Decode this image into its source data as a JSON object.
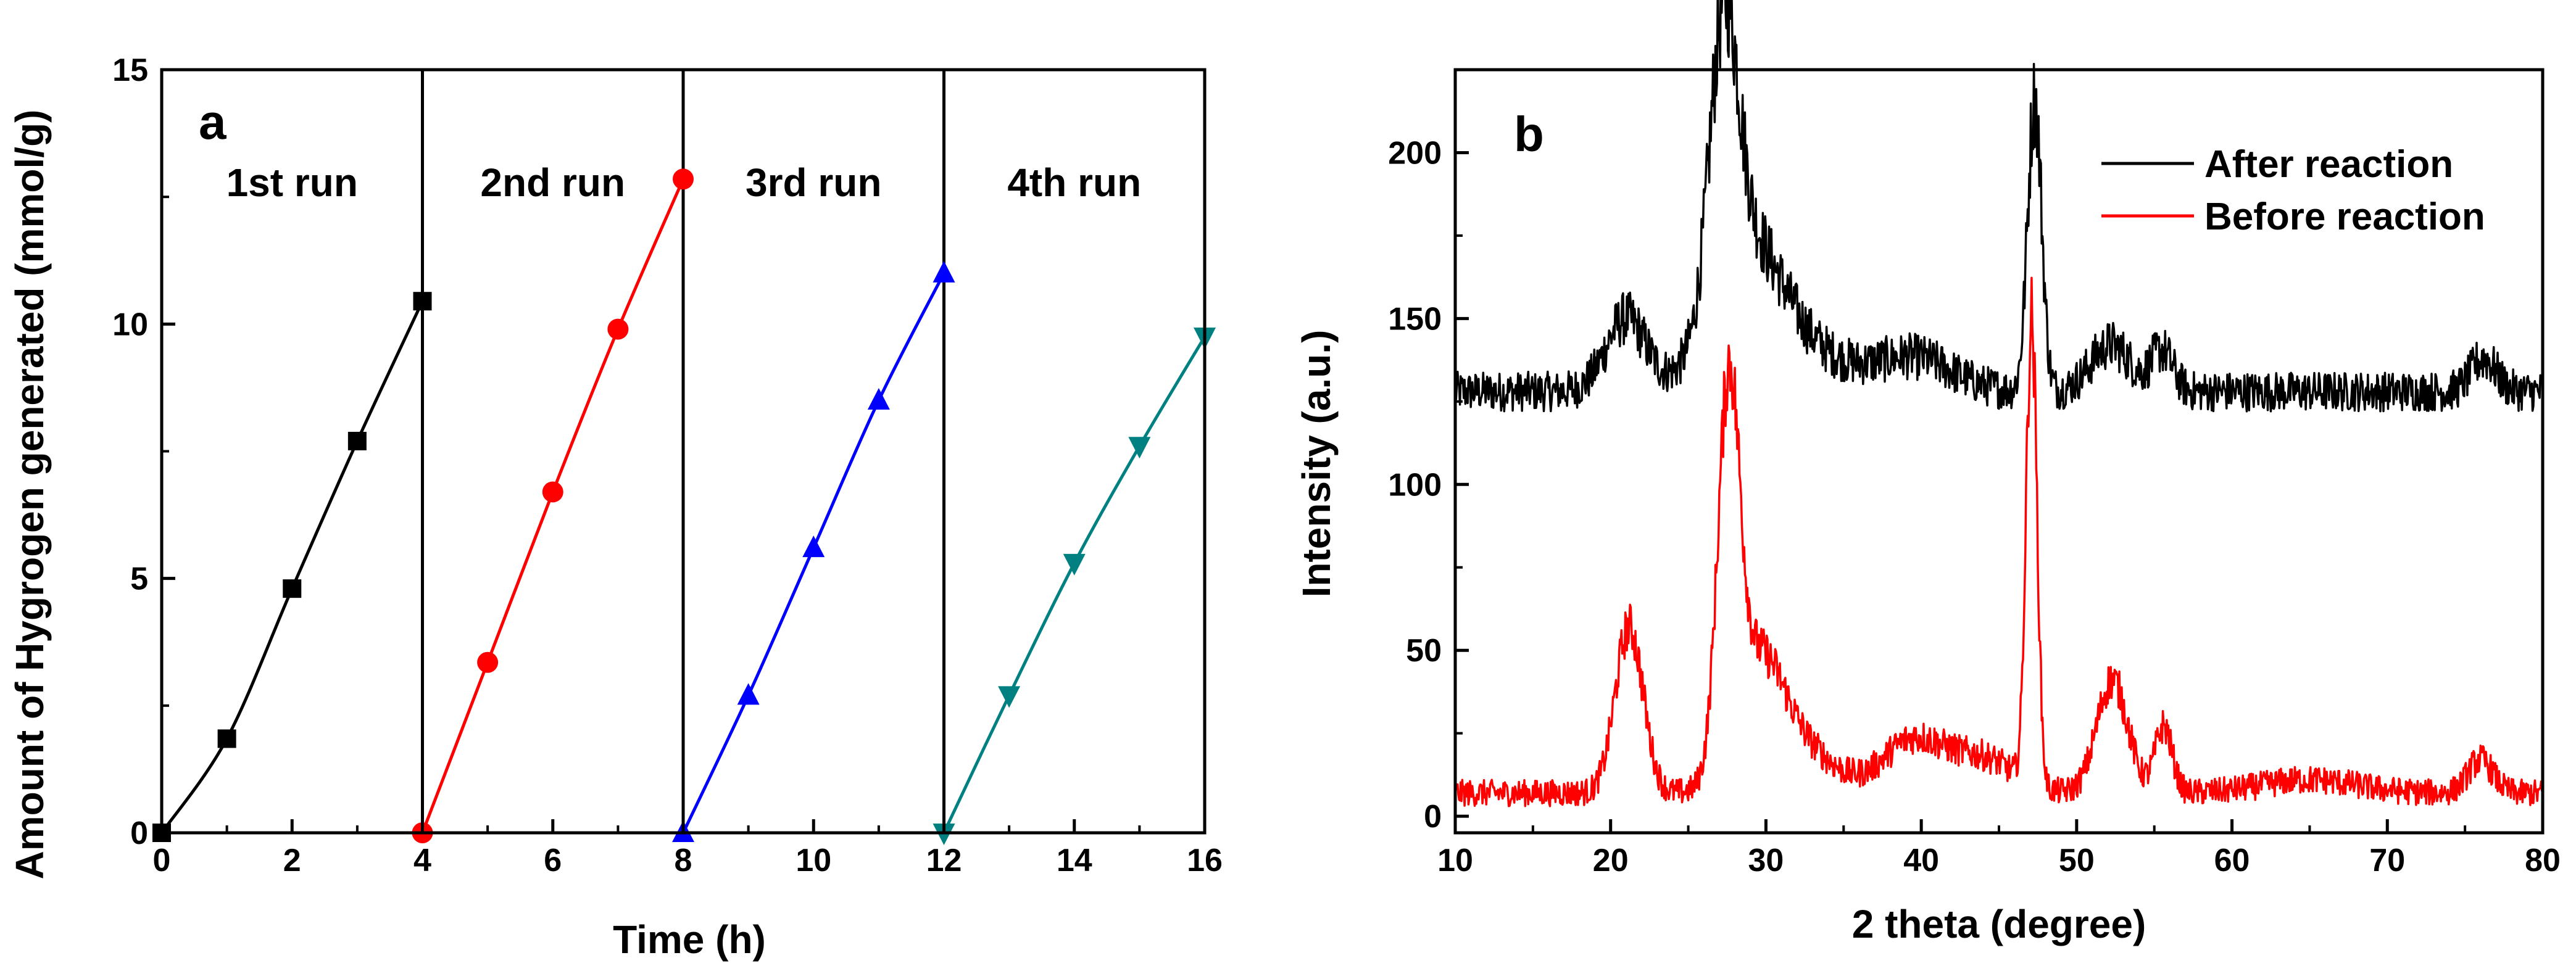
{
  "chart_data": [
    {
      "type": "line",
      "panel_label": "a",
      "xlabel": "Time (h)",
      "ylabel": "Amount of Hygrogen generated (mmol/g)",
      "xlim": [
        0,
        16
      ],
      "ylim": [
        0,
        15
      ],
      "xticks": [
        0,
        2,
        4,
        6,
        8,
        10,
        12,
        14,
        16
      ],
      "yticks": [
        0,
        5,
        10,
        15
      ],
      "run_dividers": [
        4,
        8,
        12
      ],
      "series": [
        {
          "name": "1st run",
          "color": "#000000",
          "marker": "square",
          "x": [
            0,
            1,
            2,
            3,
            4
          ],
          "y": [
            0,
            1.85,
            4.8,
            7.7,
            10.45
          ]
        },
        {
          "name": "2nd run",
          "color": "#ff0000",
          "marker": "circle",
          "x": [
            4,
            5,
            6,
            7,
            8
          ],
          "y": [
            0,
            3.35,
            6.7,
            9.9,
            12.85
          ]
        },
        {
          "name": "3rd run",
          "color": "#0000ff",
          "marker": "triangle-up",
          "x": [
            8,
            9,
            10,
            11,
            12
          ],
          "y": [
            0,
            2.7,
            5.6,
            8.5,
            11.0
          ]
        },
        {
          "name": "4th run",
          "color": "#008080",
          "marker": "triangle-down",
          "x": [
            12,
            13,
            14,
            15,
            16
          ],
          "y": [
            0,
            2.7,
            5.3,
            7.6,
            9.75
          ]
        }
      ]
    },
    {
      "type": "line",
      "panel_label": "b",
      "xlabel": "2 theta (degree)",
      "ylabel": "Intensity (a.u.)",
      "xlim": [
        10,
        80
      ],
      "ylim": [
        -5,
        225
      ],
      "xticks": [
        10,
        20,
        30,
        40,
        50,
        60,
        70,
        80
      ],
      "yticks": [
        0,
        50,
        100,
        150,
        200
      ],
      "legend_position": "top-right",
      "series": [
        {
          "name": "After reaction",
          "color": "#000000",
          "baseline": 128,
          "peaks": [
            {
              "x": 21.0,
              "height": 22,
              "width": 1.3
            },
            {
              "x": 27.3,
              "height": 82,
              "width": 0.9
            },
            {
              "x": 28.6,
              "height": 40,
              "width": 2.2
            },
            {
              "x": 32.0,
              "height": 12,
              "width": 3.0
            },
            {
              "x": 39.5,
              "height": 10,
              "width": 2.5
            },
            {
              "x": 47.3,
              "height": 88,
              "width": 0.45
            },
            {
              "x": 52.2,
              "height": 14,
              "width": 1.3
            },
            {
              "x": 55.5,
              "height": 12,
              "width": 0.7
            },
            {
              "x": 76.2,
              "height": 10,
              "width": 0.8
            }
          ]
        },
        {
          "name": "Before reaction",
          "color": "#ff0000",
          "baseline": 7,
          "peaks": [
            {
              "x": 21.2,
              "height": 50,
              "width": 0.9
            },
            {
              "x": 27.6,
              "height": 110,
              "width": 0.7
            },
            {
              "x": 29.5,
              "height": 38,
              "width": 1.6
            },
            {
              "x": 32.5,
              "height": 12,
              "width": 2.0
            },
            {
              "x": 39.5,
              "height": 16,
              "width": 2.0
            },
            {
              "x": 44.0,
              "height": 10,
              "width": 2.0
            },
            {
              "x": 47.1,
              "height": 140,
              "width": 0.35
            },
            {
              "x": 52.3,
              "height": 34,
              "width": 1.0
            },
            {
              "x": 55.6,
              "height": 20,
              "width": 0.55
            },
            {
              "x": 65.0,
              "height": 4,
              "width": 3.0
            },
            {
              "x": 76.0,
              "height": 10,
              "width": 0.8
            }
          ]
        }
      ]
    }
  ]
}
